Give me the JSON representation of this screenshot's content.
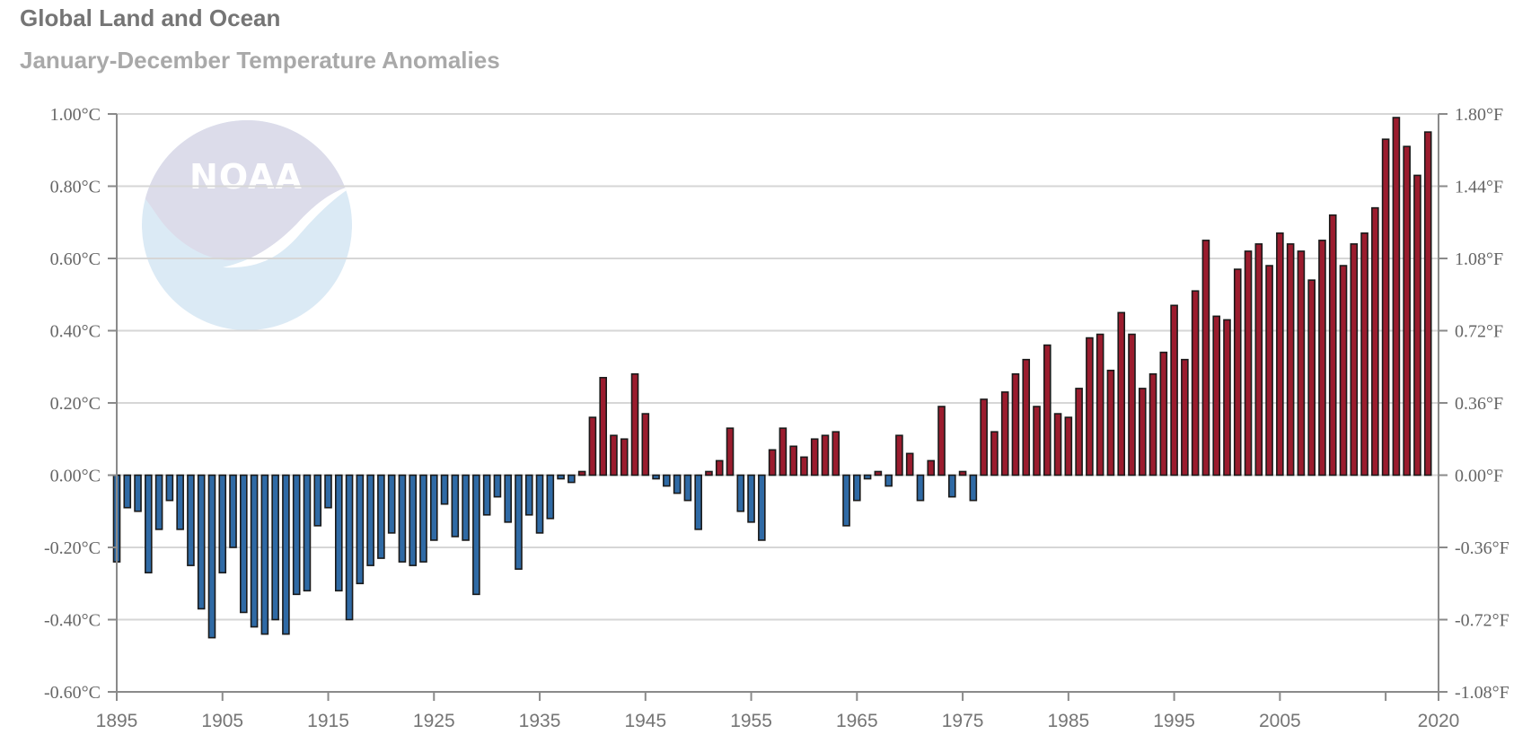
{
  "title": "Global Land and Ocean",
  "subtitle": "January-December Temperature Anomalies",
  "logo": {
    "text": "NOAA",
    "icon": "noaa-logo"
  },
  "colors": {
    "positive": "#9b1c2e",
    "negative": "#2f6aa5",
    "bar_stroke": "#1a1a1a",
    "grid": "#d6d6d6",
    "axis": "#8a8a8a",
    "logo_top": "#dcdcea",
    "logo_bottom": "#dbeaf5"
  },
  "chart_data": {
    "type": "bar",
    "title": "Global Land and Ocean",
    "subtitle": "January-December Temperature Anomalies",
    "x_range": [
      1895,
      2020
    ],
    "ylim": [
      -0.6,
      1.0
    ],
    "grid": true,
    "y_ticks_left": [
      "1.00°C",
      "0.80°C",
      "0.60°C",
      "0.40°C",
      "0.20°C",
      "0.00°C",
      "-0.20°C",
      "-0.40°C",
      "-0.60°C"
    ],
    "y_ticks_right": [
      "1.80°F",
      "1.44°F",
      "1.08°F",
      "0.72°F",
      "0.36°F",
      "0.00°F",
      "-0.36°F",
      "-0.72°F",
      "-1.08°F"
    ],
    "x_ticks": [
      "1895",
      "1905",
      "1915",
      "1925",
      "1935",
      "1945",
      "1955",
      "1965",
      "1975",
      "1985",
      "1995",
      "2005",
      "2020"
    ],
    "years": [
      1895,
      1896,
      1897,
      1898,
      1899,
      1900,
      1901,
      1902,
      1903,
      1904,
      1905,
      1906,
      1907,
      1908,
      1909,
      1910,
      1911,
      1912,
      1913,
      1914,
      1915,
      1916,
      1917,
      1918,
      1919,
      1920,
      1921,
      1922,
      1923,
      1924,
      1925,
      1926,
      1927,
      1928,
      1929,
      1930,
      1931,
      1932,
      1933,
      1934,
      1935,
      1936,
      1937,
      1938,
      1939,
      1940,
      1941,
      1942,
      1943,
      1944,
      1945,
      1946,
      1947,
      1948,
      1949,
      1950,
      1951,
      1952,
      1953,
      1954,
      1955,
      1956,
      1957,
      1958,
      1959,
      1960,
      1961,
      1962,
      1963,
      1964,
      1965,
      1966,
      1967,
      1968,
      1969,
      1970,
      1971,
      1972,
      1973,
      1974,
      1975,
      1976,
      1977,
      1978,
      1979,
      1980,
      1981,
      1982,
      1983,
      1984,
      1985,
      1986,
      1987,
      1988,
      1989,
      1990,
      1991,
      1992,
      1993,
      1994,
      1995,
      1996,
      1997,
      1998,
      1999,
      2000,
      2001,
      2002,
      2003,
      2004,
      2005,
      2006,
      2007,
      2008,
      2009,
      2010,
      2011,
      2012,
      2013,
      2014,
      2015,
      2016,
      2017,
      2018,
      2019
    ],
    "values": [
      -0.24,
      -0.09,
      -0.1,
      -0.27,
      -0.15,
      -0.07,
      -0.15,
      -0.25,
      -0.37,
      -0.45,
      -0.27,
      -0.2,
      -0.38,
      -0.42,
      -0.44,
      -0.4,
      -0.44,
      -0.33,
      -0.32,
      -0.14,
      -0.09,
      -0.32,
      -0.4,
      -0.3,
      -0.25,
      -0.23,
      -0.16,
      -0.24,
      -0.25,
      -0.24,
      -0.18,
      -0.08,
      -0.17,
      -0.18,
      -0.33,
      -0.11,
      -0.06,
      -0.13,
      -0.26,
      -0.11,
      -0.16,
      -0.12,
      -0.01,
      -0.02,
      0.01,
      0.16,
      0.27,
      0.11,
      0.1,
      0.28,
      0.17,
      -0.01,
      -0.03,
      -0.05,
      -0.07,
      -0.15,
      0.01,
      0.04,
      0.13,
      -0.1,
      -0.13,
      -0.18,
      0.07,
      0.13,
      0.08,
      0.05,
      0.1,
      0.11,
      0.12,
      -0.14,
      -0.07,
      -0.01,
      0.01,
      -0.03,
      0.11,
      0.06,
      -0.07,
      0.04,
      0.19,
      -0.06,
      0.01,
      -0.07,
      0.21,
      0.12,
      0.23,
      0.28,
      0.32,
      0.19,
      0.36,
      0.17,
      0.16,
      0.24,
      0.38,
      0.39,
      0.29,
      0.45,
      0.39,
      0.24,
      0.28,
      0.34,
      0.47,
      0.32,
      0.51,
      0.65,
      0.44,
      0.43,
      0.57,
      0.62,
      0.64,
      0.58,
      0.67,
      0.64,
      0.62,
      0.54,
      0.65,
      0.72,
      0.58,
      0.64,
      0.67,
      0.74,
      0.93,
      0.99,
      0.91,
      0.83,
      0.95
    ]
  }
}
